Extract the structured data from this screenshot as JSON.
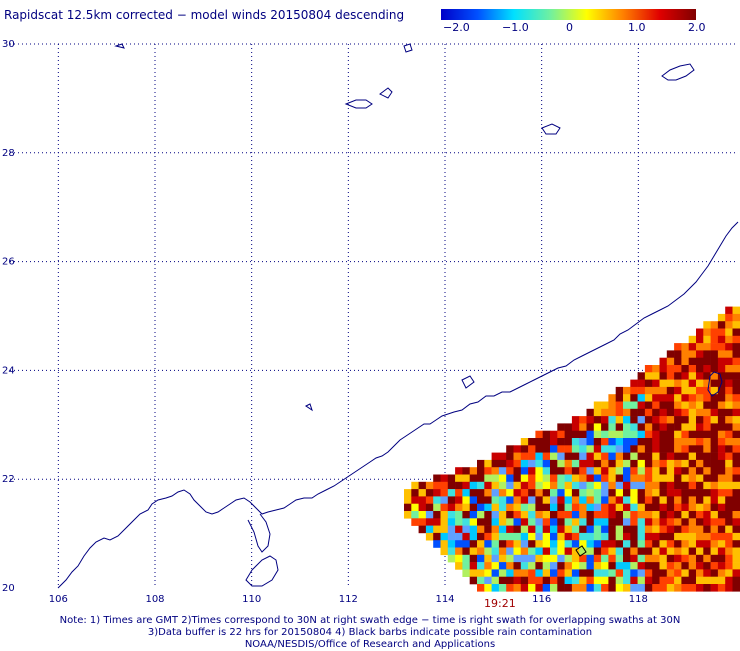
{
  "title": "Rapidscat 12.5km corrected − model winds 20150804 descending",
  "colorbar": {
    "labels": [
      "−2.0",
      "−1.0",
      "0",
      "1.0",
      "2.0"
    ],
    "values": [
      -2,
      -1,
      0,
      1,
      2
    ],
    "stops": [
      "#0000c8",
      "#0050ff",
      "#00e0ff",
      "#70f0a0",
      "#ffff00",
      "#ff8000",
      "#e00000",
      "#800000"
    ]
  },
  "axes": {
    "lat_labels": [
      "30",
      "28",
      "26",
      "24",
      "22",
      "20"
    ],
    "lat_values": [
      30,
      28,
      26,
      24,
      22,
      20
    ],
    "lon_labels": [
      "106",
      "108",
      "110",
      "112",
      "114",
      "116",
      "118"
    ],
    "lon_values": [
      106,
      108,
      110,
      112,
      114,
      116,
      118
    ],
    "lon_range": [
      105.0,
      120.0
    ],
    "lat_range": [
      20.0,
      30.0
    ],
    "grid": true
  },
  "swath_time": "19:21",
  "notes": [
    "Note: 1) Times are GMT 2)Times correspond to 30N at right swath edge − time is right swath for overlapping swaths at 30N",
    "3)Data buffer is 22 hrs for 20150804 4) Black barbs indicate possible rain contamination",
    "NOAA/NESDIS/Office of Research and Applications"
  ]
}
